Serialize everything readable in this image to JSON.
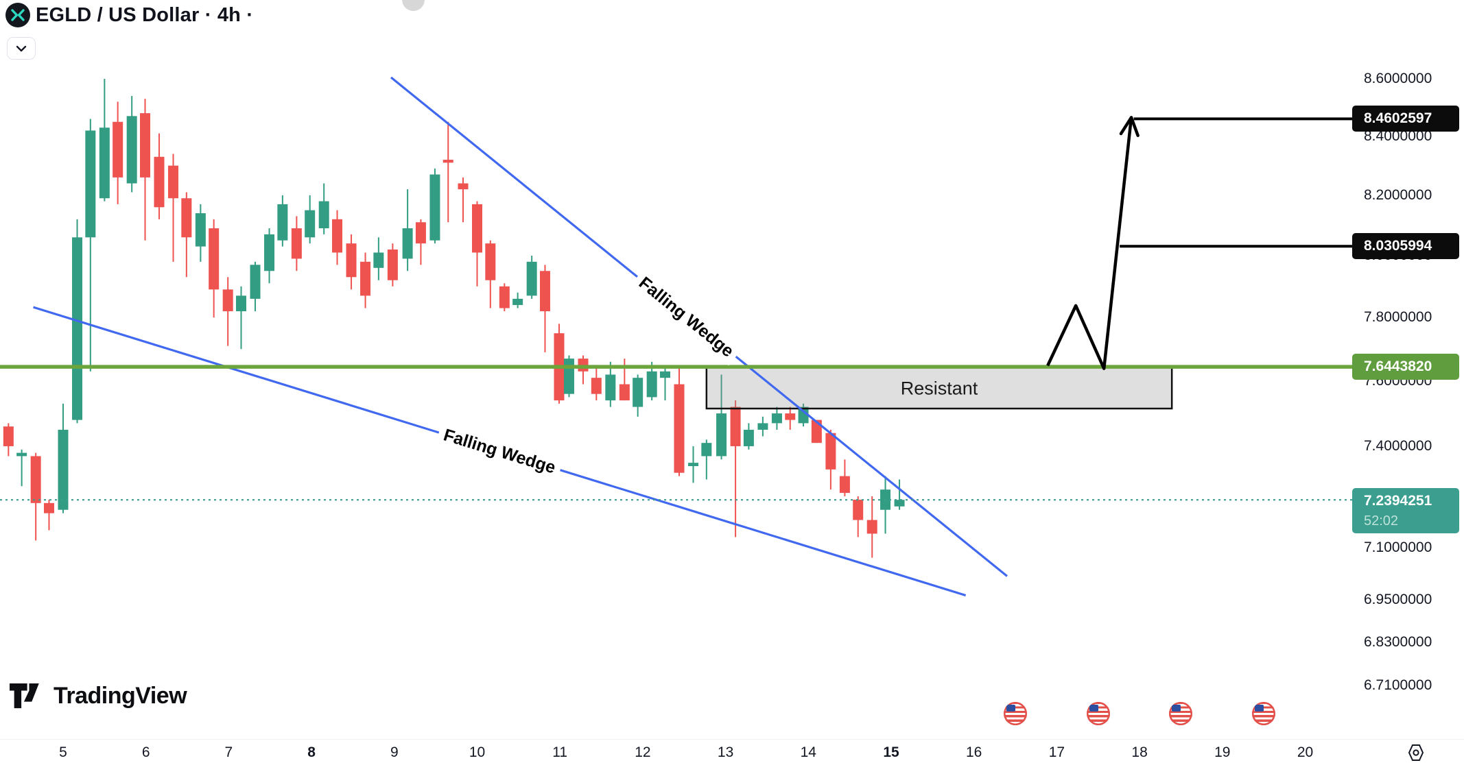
{
  "header": {
    "title": "EGLD / US Dollar · 4h ·",
    "logo_icon": "multiversx-x-logo",
    "currency": "USD"
  },
  "footer": {
    "brand": "TradingView",
    "flag_days": [
      16.5,
      17.5,
      18.5,
      19.5
    ]
  },
  "colors": {
    "up": "#339d83",
    "down": "#ef5350",
    "support_line": "#6ba53c",
    "support_tag": "#5f9d3e",
    "current_teal": "#3b9e8e",
    "wedge_blue": "#4169f0",
    "zone_fill": "rgba(150,150,150,0.30)",
    "zone_border": "#111111",
    "projection_black": "#000000",
    "tag_black": "#0c0c0c",
    "axis_text": "#131722"
  },
  "chart_data": {
    "type": "candlestick",
    "symbol": "EGLD/USD",
    "interval": "4h",
    "grid": false,
    "y_axis": {
      "scale": "log",
      "ticks": [
        {
          "v": 8.6,
          "label": "8.6000000"
        },
        {
          "v": 8.4,
          "label": "8.4000000"
        },
        {
          "v": 8.2,
          "label": "8.2000000"
        },
        {
          "v": 8.0,
          "label": "8.0000000"
        },
        {
          "v": 7.8,
          "label": "7.8000000"
        },
        {
          "v": 7.6,
          "label": "7.6000000"
        },
        {
          "v": 7.4,
          "label": "7.4000000"
        },
        {
          "v": 7.1,
          "label": "7.1000000"
        },
        {
          "v": 6.95,
          "label": "6.9500000"
        },
        {
          "v": 6.83,
          "label": "6.8300000"
        },
        {
          "v": 6.71,
          "label": "6.7100000"
        }
      ]
    },
    "x_axis": {
      "labels": [
        5,
        6,
        7,
        8,
        9,
        10,
        11,
        12,
        13,
        14,
        15,
        16,
        17,
        18,
        19,
        20
      ],
      "bold_labels": [
        8,
        15
      ]
    },
    "candles": [
      [
        4.34,
        7.46,
        7.47,
        7.37,
        7.4
      ],
      [
        4.5,
        7.37,
        7.39,
        7.28,
        7.38
      ],
      [
        4.67,
        7.37,
        7.38,
        7.12,
        7.23
      ],
      [
        4.83,
        7.23,
        7.24,
        7.15,
        7.2
      ],
      [
        5.0,
        7.21,
        7.53,
        7.2,
        7.45
      ],
      [
        5.17,
        7.48,
        8.12,
        7.47,
        8.06
      ],
      [
        5.33,
        8.06,
        8.46,
        7.63,
        8.42
      ],
      [
        5.5,
        8.19,
        8.6,
        8.18,
        8.43
      ],
      [
        5.66,
        8.45,
        8.52,
        8.17,
        8.26
      ],
      [
        5.83,
        8.24,
        8.54,
        8.21,
        8.47
      ],
      [
        5.99,
        8.48,
        8.53,
        8.05,
        8.26
      ],
      [
        6.16,
        8.33,
        8.41,
        8.12,
        8.16
      ],
      [
        6.33,
        8.3,
        8.34,
        7.98,
        8.19
      ],
      [
        6.49,
        8.19,
        8.21,
        7.93,
        8.06
      ],
      [
        6.66,
        8.03,
        8.17,
        7.98,
        8.14
      ],
      [
        6.82,
        8.09,
        8.12,
        7.8,
        7.89
      ],
      [
        6.99,
        7.89,
        7.93,
        7.71,
        7.82
      ],
      [
        7.15,
        7.82,
        7.9,
        7.7,
        7.87
      ],
      [
        7.32,
        7.86,
        7.98,
        7.82,
        7.97
      ],
      [
        7.49,
        7.95,
        8.09,
        7.91,
        8.07
      ],
      [
        7.65,
        8.05,
        8.2,
        8.03,
        8.17
      ],
      [
        7.82,
        8.09,
        8.13,
        7.95,
        7.99
      ],
      [
        7.98,
        8.06,
        8.2,
        8.04,
        8.15
      ],
      [
        8.15,
        8.09,
        8.24,
        8.07,
        8.18
      ],
      [
        8.31,
        8.12,
        8.15,
        7.97,
        8.01
      ],
      [
        8.48,
        8.04,
        8.07,
        7.89,
        7.93
      ],
      [
        8.65,
        7.98,
        8.01,
        7.83,
        7.87
      ],
      [
        8.81,
        7.96,
        8.06,
        7.92,
        8.01
      ],
      [
        8.98,
        8.02,
        8.04,
        7.9,
        7.92
      ],
      [
        9.16,
        7.99,
        8.22,
        7.95,
        8.09
      ],
      [
        9.32,
        8.11,
        8.12,
        7.97,
        8.04
      ],
      [
        9.49,
        8.05,
        8.29,
        8.04,
        8.27
      ],
      [
        9.65,
        8.32,
        8.45,
        8.11,
        8.31
      ],
      [
        9.83,
        8.24,
        8.26,
        8.11,
        8.22
      ],
      [
        10.0,
        8.17,
        8.18,
        7.9,
        8.01
      ],
      [
        10.16,
        8.04,
        8.05,
        7.83,
        7.92
      ],
      [
        10.33,
        7.9,
        7.91,
        7.82,
        7.83
      ],
      [
        10.49,
        7.84,
        7.88,
        7.83,
        7.86
      ],
      [
        10.66,
        7.87,
        8.0,
        7.86,
        7.98
      ],
      [
        10.82,
        7.95,
        7.97,
        7.69,
        7.82
      ],
      [
        10.99,
        7.75,
        7.78,
        7.53,
        7.54
      ],
      [
        11.11,
        7.56,
        7.68,
        7.55,
        7.67
      ],
      [
        11.28,
        7.67,
        7.68,
        7.59,
        7.63
      ],
      [
        11.44,
        7.61,
        7.65,
        7.54,
        7.56
      ],
      [
        11.61,
        7.54,
        7.66,
        7.52,
        7.62
      ],
      [
        11.78,
        7.59,
        7.67,
        7.54,
        7.54
      ],
      [
        11.94,
        7.52,
        7.62,
        7.49,
        7.61
      ],
      [
        12.11,
        7.55,
        7.66,
        7.54,
        7.63
      ],
      [
        12.27,
        7.61,
        7.64,
        7.54,
        7.63
      ],
      [
        12.44,
        7.59,
        7.64,
        7.31,
        7.32
      ],
      [
        12.61,
        7.34,
        7.4,
        7.29,
        7.35
      ],
      [
        12.77,
        7.37,
        7.42,
        7.3,
        7.41
      ],
      [
        12.95,
        7.37,
        7.62,
        7.36,
        7.5
      ],
      [
        13.12,
        7.52,
        7.54,
        7.13,
        7.4
      ],
      [
        13.28,
        7.4,
        7.47,
        7.39,
        7.45
      ],
      [
        13.45,
        7.45,
        7.49,
        7.43,
        7.47
      ],
      [
        13.62,
        7.47,
        7.52,
        7.45,
        7.5
      ],
      [
        13.78,
        7.5,
        7.52,
        7.45,
        7.48
      ],
      [
        13.94,
        7.47,
        7.53,
        7.46,
        7.52
      ],
      [
        14.1,
        7.48,
        7.48,
        7.41,
        7.41
      ],
      [
        14.27,
        7.44,
        7.45,
        7.27,
        7.33
      ],
      [
        14.44,
        7.31,
        7.36,
        7.25,
        7.26
      ],
      [
        14.6,
        7.24,
        7.25,
        7.13,
        7.18
      ],
      [
        14.77,
        7.18,
        7.25,
        7.07,
        7.14
      ],
      [
        14.93,
        7.21,
        7.31,
        7.14,
        7.27
      ],
      [
        15.1,
        7.22,
        7.3,
        7.21,
        7.2394251
      ]
    ],
    "annotations": {
      "support_line": {
        "price": 7.644382,
        "tag": "7.6443820"
      },
      "current_price": {
        "price": 7.2394251,
        "tag": "7.2394251",
        "countdown": "52:02"
      },
      "targets": [
        {
          "price": 8.4602597,
          "tag": "8.4602597",
          "from_day": 17.93
        },
        {
          "price": 8.0305994,
          "tag": "8.0305994",
          "from_day": 17.76
        }
      ],
      "resistance_zone": {
        "label": "Resistant",
        "day1": 12.77,
        "day2": 18.39,
        "price_top": 7.639,
        "price_bottom": 7.515
      },
      "wedge_lines": [
        {
          "label": "Falling Wedge",
          "d1": 8.96,
          "p1": 8.605,
          "d2": 16.4,
          "p2": 7.017,
          "label_day": 12.52,
          "label_price": 7.8,
          "angle": 39
        },
        {
          "label": "Falling Wedge",
          "d1": 4.64,
          "p1": 7.833,
          "d2": 15.9,
          "p2": 6.962,
          "label_day": 10.27,
          "label_price": 7.384,
          "angle": 17
        }
      ],
      "projection_path": {
        "points": [
          [
            16.89,
            7.648
          ],
          [
            17.23,
            7.838
          ],
          [
            17.57,
            7.639
          ],
          [
            17.9,
            8.465
          ]
        ],
        "arrow": "up"
      }
    }
  }
}
